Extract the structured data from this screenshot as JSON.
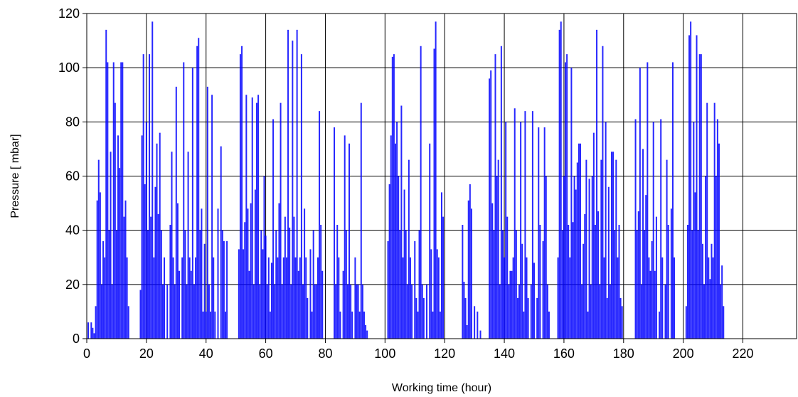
{
  "chart_data": {
    "type": "bar",
    "xlabel": "Working time (hour)",
    "ylabel": "Pressure [ mbar]",
    "xlim": [
      0,
      238
    ],
    "ylim": [
      0,
      120
    ],
    "x_ticks": [
      0,
      20,
      40,
      60,
      80,
      100,
      120,
      140,
      160,
      180,
      200,
      220
    ],
    "y_ticks": [
      0,
      20,
      40,
      60,
      80,
      100,
      120
    ],
    "grid": true,
    "legend": "none",
    "colors": {
      "series": "#0000ff",
      "grid": "#000000",
      "axis": "#000000"
    },
    "series": [
      {
        "points": [
          [
            0.5,
            6
          ],
          [
            1.5,
            6
          ],
          [
            2,
            4
          ],
          [
            2.5,
            2
          ],
          [
            3,
            12
          ],
          [
            3.5,
            51
          ],
          [
            4,
            66
          ],
          [
            4.5,
            54
          ],
          [
            5,
            20
          ],
          [
            5.5,
            36
          ],
          [
            6,
            30
          ],
          [
            6.5,
            114
          ],
          [
            7,
            102
          ],
          [
            7.5,
            40
          ],
          [
            8,
            69
          ],
          [
            8.5,
            20
          ],
          [
            9,
            102
          ],
          [
            9.5,
            87
          ],
          [
            10,
            40
          ],
          [
            10.5,
            75
          ],
          [
            11,
            63
          ],
          [
            11.5,
            102
          ],
          [
            12,
            102
          ],
          [
            12.5,
            45
          ],
          [
            13,
            51
          ],
          [
            13.5,
            30
          ],
          [
            14,
            12
          ],
          [
            18,
            18
          ],
          [
            18.5,
            75
          ],
          [
            19,
            105
          ],
          [
            19.5,
            57
          ],
          [
            20,
            80
          ],
          [
            20.5,
            40
          ],
          [
            21,
            105
          ],
          [
            21.5,
            45
          ],
          [
            22,
            117
          ],
          [
            22.5,
            30
          ],
          [
            23,
            56
          ],
          [
            23.5,
            72
          ],
          [
            24,
            46
          ],
          [
            24.5,
            76
          ],
          [
            25,
            40
          ],
          [
            25.5,
            20
          ],
          [
            26,
            30
          ],
          [
            27,
            20
          ],
          [
            28,
            42
          ],
          [
            28.5,
            69
          ],
          [
            29,
            30
          ],
          [
            29.5,
            20
          ],
          [
            30,
            93
          ],
          [
            30.5,
            50
          ],
          [
            31,
            25
          ],
          [
            32,
            30
          ],
          [
            32.5,
            102
          ],
          [
            33,
            40
          ],
          [
            33.5,
            20
          ],
          [
            34,
            69
          ],
          [
            34.5,
            30
          ],
          [
            35,
            25
          ],
          [
            35.5,
            100
          ],
          [
            36,
            20
          ],
          [
            36.5,
            30
          ],
          [
            37,
            108
          ],
          [
            37.5,
            111
          ],
          [
            38,
            40
          ],
          [
            38.5,
            48
          ],
          [
            39,
            10
          ],
          [
            39.5,
            35
          ],
          [
            40,
            10
          ],
          [
            40.5,
            93
          ],
          [
            41,
            20
          ],
          [
            41.5,
            10
          ],
          [
            42,
            90
          ],
          [
            42.5,
            30
          ],
          [
            43,
            10
          ],
          [
            44,
            48
          ],
          [
            45,
            71
          ],
          [
            45.5,
            40
          ],
          [
            46,
            36
          ],
          [
            46.5,
            10
          ],
          [
            47,
            36
          ],
          [
            51,
            33
          ],
          [
            51.5,
            105
          ],
          [
            52,
            108
          ],
          [
            52.5,
            33
          ],
          [
            53,
            43
          ],
          [
            53.5,
            90
          ],
          [
            54,
            48
          ],
          [
            54.5,
            25
          ],
          [
            55,
            50
          ],
          [
            55.5,
            89
          ],
          [
            56,
            20
          ],
          [
            56.5,
            55
          ],
          [
            57,
            87
          ],
          [
            57.5,
            90
          ],
          [
            58,
            20
          ],
          [
            58.5,
            40
          ],
          [
            59,
            33
          ],
          [
            59.5,
            60
          ],
          [
            60,
            38
          ],
          [
            60.5,
            20
          ],
          [
            61,
            30
          ],
          [
            61.5,
            10
          ],
          [
            62,
            28
          ],
          [
            62.5,
            81
          ],
          [
            63,
            20
          ],
          [
            63.5,
            40
          ],
          [
            64,
            30
          ],
          [
            64.5,
            50
          ],
          [
            65,
            87
          ],
          [
            65.5,
            20
          ],
          [
            66,
            30
          ],
          [
            66.5,
            45
          ],
          [
            67,
            30
          ],
          [
            67.5,
            114
          ],
          [
            68,
            41
          ],
          [
            68.5,
            20
          ],
          [
            69,
            110
          ],
          [
            69.5,
            45
          ],
          [
            70,
            30
          ],
          [
            70.5,
            114
          ],
          [
            71,
            25
          ],
          [
            71.5,
            30
          ],
          [
            72,
            105
          ],
          [
            72.5,
            20
          ],
          [
            73,
            48
          ],
          [
            73.5,
            30
          ],
          [
            74,
            15
          ],
          [
            75,
            33
          ],
          [
            75.5,
            10
          ],
          [
            76,
            40
          ],
          [
            76.5,
            20
          ],
          [
            77,
            20
          ],
          [
            77.5,
            30
          ],
          [
            78,
            84
          ],
          [
            78.5,
            42
          ],
          [
            79,
            25
          ],
          [
            83,
            78
          ],
          [
            83.5,
            20
          ],
          [
            84,
            42
          ],
          [
            84.5,
            30
          ],
          [
            85,
            10
          ],
          [
            86,
            25
          ],
          [
            86.5,
            75
          ],
          [
            87,
            40
          ],
          [
            87.5,
            20
          ],
          [
            88,
            72
          ],
          [
            88.5,
            20
          ],
          [
            89,
            10
          ],
          [
            90,
            30
          ],
          [
            90.5,
            20
          ],
          [
            91,
            20
          ],
          [
            91.5,
            10
          ],
          [
            92,
            87
          ],
          [
            92.5,
            20
          ],
          [
            93,
            10
          ],
          [
            93.5,
            5
          ],
          [
            94,
            3
          ],
          [
            101,
            36
          ],
          [
            101.5,
            57
          ],
          [
            102,
            75
          ],
          [
            102.5,
            104
          ],
          [
            103,
            105
          ],
          [
            103.5,
            72
          ],
          [
            104,
            80
          ],
          [
            104.5,
            60
          ],
          [
            105,
            40
          ],
          [
            105.5,
            86
          ],
          [
            106,
            30
          ],
          [
            106.5,
            55
          ],
          [
            107,
            40
          ],
          [
            107.5,
            20
          ],
          [
            108,
            66
          ],
          [
            108.5,
            30
          ],
          [
            109,
            20
          ],
          [
            110,
            36
          ],
          [
            110.5,
            15
          ],
          [
            111,
            10
          ],
          [
            111.5,
            40
          ],
          [
            112,
            108
          ],
          [
            112.5,
            20
          ],
          [
            113,
            15
          ],
          [
            114,
            20
          ],
          [
            115,
            72
          ],
          [
            115.5,
            33
          ],
          [
            116,
            10
          ],
          [
            116.5,
            107
          ],
          [
            117,
            117
          ],
          [
            117.5,
            33
          ],
          [
            118,
            30
          ],
          [
            118.5,
            10
          ],
          [
            119,
            54
          ],
          [
            119.5,
            45
          ],
          [
            126,
            42
          ],
          [
            126.5,
            21
          ],
          [
            127,
            15
          ],
          [
            127.5,
            5
          ],
          [
            128,
            51
          ],
          [
            128.5,
            57
          ],
          [
            129,
            48
          ],
          [
            130,
            12
          ],
          [
            131,
            10
          ],
          [
            132,
            3
          ],
          [
            135,
            96
          ],
          [
            135.5,
            99
          ],
          [
            136,
            50
          ],
          [
            136.5,
            40
          ],
          [
            137,
            105
          ],
          [
            137.5,
            60
          ],
          [
            138,
            66
          ],
          [
            138.5,
            20
          ],
          [
            139,
            108
          ],
          [
            139.5,
            40
          ],
          [
            140,
            30
          ],
          [
            140.5,
            80
          ],
          [
            141,
            45
          ],
          [
            141.5,
            20
          ],
          [
            142,
            25
          ],
          [
            142.5,
            25
          ],
          [
            143,
            30
          ],
          [
            143.5,
            85
          ],
          [
            144,
            40
          ],
          [
            144.5,
            15
          ],
          [
            145,
            20
          ],
          [
            145.5,
            80
          ],
          [
            146,
            35
          ],
          [
            146.5,
            10
          ],
          [
            147,
            84
          ],
          [
            147.5,
            30
          ],
          [
            148,
            15
          ],
          [
            149,
            20
          ],
          [
            149.5,
            84
          ],
          [
            150,
            28
          ],
          [
            151,
            15
          ],
          [
            151.5,
            78
          ],
          [
            152,
            42
          ],
          [
            153,
            36
          ],
          [
            153.5,
            78
          ],
          [
            154,
            60
          ],
          [
            154.5,
            20
          ],
          [
            155,
            10
          ],
          [
            158,
            30
          ],
          [
            158.5,
            114
          ],
          [
            159,
            117
          ],
          [
            159.5,
            40
          ],
          [
            160,
            60
          ],
          [
            160.5,
            102
          ],
          [
            161,
            105
          ],
          [
            161.5,
            42
          ],
          [
            162,
            30
          ],
          [
            162.5,
            100
          ],
          [
            163,
            43
          ],
          [
            163.5,
            60
          ],
          [
            164,
            55
          ],
          [
            164.5,
            65
          ],
          [
            165,
            72
          ],
          [
            165.5,
            72
          ],
          [
            166,
            20
          ],
          [
            166.5,
            35
          ],
          [
            167,
            46
          ],
          [
            167.5,
            66
          ],
          [
            168,
            10
          ],
          [
            168.5,
            59
          ],
          [
            169,
            20
          ],
          [
            169.5,
            60
          ],
          [
            170,
            76
          ],
          [
            170.5,
            42
          ],
          [
            171,
            114
          ],
          [
            171.5,
            47
          ],
          [
            172,
            20
          ],
          [
            172.5,
            66
          ],
          [
            173,
            108
          ],
          [
            173.5,
            30
          ],
          [
            174,
            80
          ],
          [
            174.5,
            15
          ],
          [
            175,
            56
          ],
          [
            175.5,
            20
          ],
          [
            176,
            69
          ],
          [
            176.5,
            69
          ],
          [
            177,
            40
          ],
          [
            177.5,
            66
          ],
          [
            178,
            30
          ],
          [
            178.5,
            42
          ],
          [
            179,
            15
          ],
          [
            179.5,
            12
          ],
          [
            184,
            81
          ],
          [
            184.5,
            40
          ],
          [
            185,
            47
          ],
          [
            185.5,
            100
          ],
          [
            186,
            20
          ],
          [
            186.5,
            70
          ],
          [
            187,
            40
          ],
          [
            187.5,
            53
          ],
          [
            188,
            102
          ],
          [
            188.5,
            30
          ],
          [
            189,
            25
          ],
          [
            189.5,
            36
          ],
          [
            190,
            80
          ],
          [
            190.5,
            25
          ],
          [
            191,
            45
          ],
          [
            192,
            10
          ],
          [
            192.5,
            81
          ],
          [
            193,
            30
          ],
          [
            194,
            20
          ],
          [
            194.5,
            66
          ],
          [
            195,
            42
          ],
          [
            196,
            48
          ],
          [
            196.5,
            102
          ],
          [
            197,
            30
          ],
          [
            201,
            12
          ],
          [
            201.5,
            42
          ],
          [
            202,
            112
          ],
          [
            202.5,
            117
          ],
          [
            203,
            40
          ],
          [
            203.5,
            80
          ],
          [
            204,
            54
          ],
          [
            204.5,
            112
          ],
          [
            205,
            40
          ],
          [
            205.5,
            105
          ],
          [
            206,
            105
          ],
          [
            206.5,
            35
          ],
          [
            207,
            20
          ],
          [
            207.5,
            60
          ],
          [
            208,
            87
          ],
          [
            208.5,
            30
          ],
          [
            209,
            22
          ],
          [
            209.5,
            35
          ],
          [
            210,
            30
          ],
          [
            210.5,
            87
          ],
          [
            211,
            60
          ],
          [
            211.5,
            81
          ],
          [
            212,
            72
          ],
          [
            212.5,
            20
          ],
          [
            213,
            27
          ],
          [
            213.5,
            12
          ]
        ]
      }
    ]
  }
}
